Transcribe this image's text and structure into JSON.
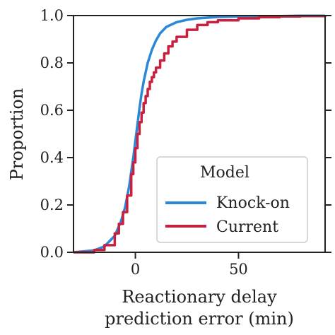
{
  "chart_data": {
    "type": "line",
    "title": "",
    "xlabel_lines": [
      "Reactionary delay",
      "prediction error (min)"
    ],
    "ylabel": "Proportion",
    "xlim": [
      -30,
      92
    ],
    "ylim": [
      0,
      1
    ],
    "x_ticks": [
      0,
      50
    ],
    "x_tick_labels": [
      "0",
      "50"
    ],
    "y_ticks": [
      0,
      0.2,
      0.4,
      0.6,
      0.8,
      1.0
    ],
    "y_tick_labels": [
      "0.0",
      "0.2",
      "0.4",
      "0.6",
      "0.8",
      "1.0"
    ],
    "grid": false,
    "legend": {
      "title": "Model",
      "placement": "lower-right"
    },
    "series": [
      {
        "name": "Knock-on",
        "color": "#2a88d8",
        "step": false,
        "x": [
          -30,
          -20,
          -15,
          -10,
          -7,
          -5,
          -3,
          -1,
          0,
          1,
          2,
          3,
          4,
          5,
          6,
          8,
          10,
          12,
          15,
          20,
          25,
          30,
          40,
          50,
          60,
          70,
          80,
          92
        ],
        "y": [
          0,
          0.008,
          0.025,
          0.07,
          0.13,
          0.19,
          0.28,
          0.4,
          0.47,
          0.54,
          0.61,
          0.67,
          0.72,
          0.76,
          0.8,
          0.855,
          0.895,
          0.925,
          0.952,
          0.972,
          0.982,
          0.988,
          0.994,
          0.996,
          0.997,
          0.998,
          0.999,
          0.999
        ]
      },
      {
        "name": "Current",
        "color": "#c8203f",
        "step": true,
        "x": [
          -30,
          -20,
          -15,
          -10,
          -8,
          -6,
          -4,
          -2,
          -1,
          0,
          1,
          2,
          3,
          4,
          5,
          6,
          7,
          8,
          9,
          10,
          12,
          14,
          16,
          18,
          20,
          25,
          30,
          35,
          40,
          50,
          60,
          70,
          80,
          92
        ],
        "y": [
          0,
          0.01,
          0.03,
          0.08,
          0.12,
          0.17,
          0.24,
          0.33,
          0.38,
          0.44,
          0.5,
          0.55,
          0.59,
          0.63,
          0.66,
          0.69,
          0.72,
          0.74,
          0.76,
          0.78,
          0.81,
          0.84,
          0.87,
          0.89,
          0.91,
          0.94,
          0.96,
          0.972,
          0.98,
          0.988,
          0.993,
          0.996,
          0.998,
          0.999
        ]
      }
    ]
  }
}
